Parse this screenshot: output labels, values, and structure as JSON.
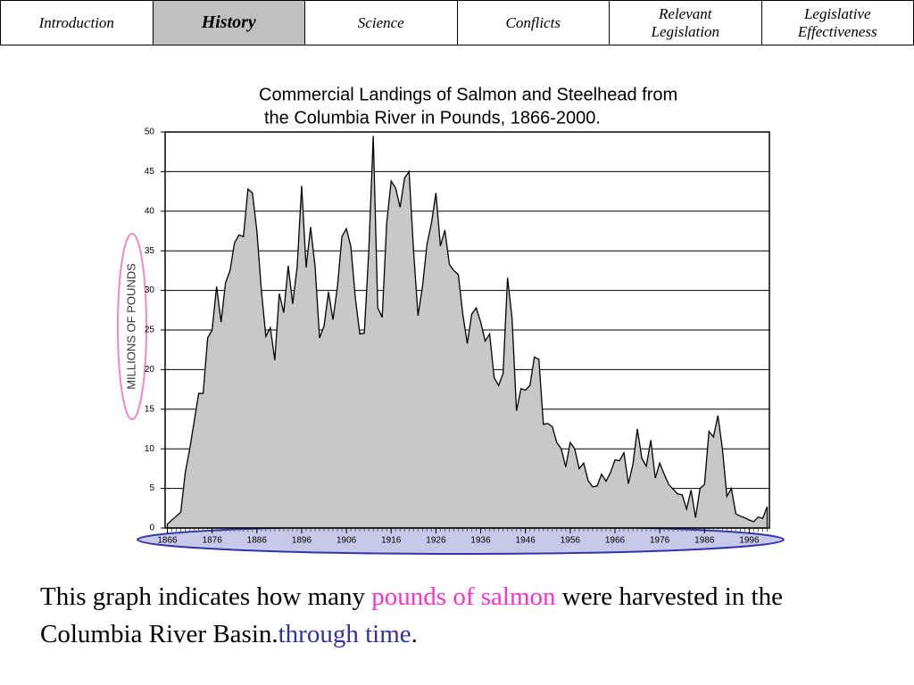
{
  "nav": {
    "tabs": [
      {
        "label": "Introduction",
        "active": false
      },
      {
        "label": "History",
        "active": true
      },
      {
        "label": "Science",
        "active": false
      },
      {
        "label": "Conflicts",
        "active": false
      },
      {
        "label": "Relevant Legislation",
        "active": false
      },
      {
        "label": "Legislative Effectiveness",
        "active": false
      }
    ]
  },
  "chart_data": {
    "type": "area",
    "title": [
      "Commercial Landings of Salmon and Steelhead from",
      "the Columbia River in Pounds, 1866-2000."
    ],
    "y_label": "MILLIONS OF POUNDS",
    "x": [
      1866,
      1867,
      1868,
      1869,
      1870,
      1871,
      1872,
      1873,
      1874,
      1875,
      1876,
      1877,
      1878,
      1879,
      1880,
      1881,
      1882,
      1883,
      1884,
      1885,
      1886,
      1887,
      1888,
      1889,
      1890,
      1891,
      1892,
      1893,
      1894,
      1895,
      1896,
      1897,
      1898,
      1899,
      1900,
      1901,
      1902,
      1903,
      1904,
      1905,
      1906,
      1907,
      1908,
      1909,
      1910,
      1911,
      1912,
      1913,
      1914,
      1915,
      1916,
      1917,
      1918,
      1919,
      1920,
      1921,
      1922,
      1923,
      1924,
      1925,
      1926,
      1927,
      1928,
      1929,
      1930,
      1931,
      1932,
      1933,
      1934,
      1935,
      1936,
      1937,
      1938,
      1939,
      1940,
      1941,
      1942,
      1943,
      1944,
      1945,
      1946,
      1947,
      1948,
      1949,
      1950,
      1951,
      1952,
      1953,
      1954,
      1955,
      1956,
      1957,
      1958,
      1959,
      1960,
      1961,
      1962,
      1963,
      1964,
      1965,
      1966,
      1967,
      1968,
      1969,
      1970,
      1971,
      1972,
      1973,
      1974,
      1975,
      1976,
      1977,
      1978,
      1979,
      1980,
      1981,
      1982,
      1983,
      1984,
      1985,
      1986,
      1987,
      1988,
      1989,
      1990,
      1991,
      1992,
      1993,
      1994,
      1995,
      1996,
      1997,
      1998,
      1999,
      2000
    ],
    "values": [
      0.5,
      1,
      1.5,
      2,
      7,
      10,
      13.5,
      17,
      17,
      24,
      25,
      30.5,
      26,
      31,
      32.5,
      36,
      37,
      36.8,
      42.8,
      42.3,
      37.5,
      30,
      24.2,
      25.3,
      21.2,
      29.6,
      27.2,
      33.1,
      28.3,
      33,
      43.2,
      32.9,
      38,
      33,
      24,
      25.5,
      29.8,
      26.3,
      30.5,
      36.8,
      37.8,
      35.5,
      29,
      24.5,
      24.6,
      35,
      49.5,
      27.8,
      26.6,
      38.5,
      43.8,
      42.9,
      40.5,
      44.2,
      45,
      35,
      26.8,
      30.5,
      35.8,
      38.5,
      42.3,
      35.6,
      37.6,
      33.3,
      32.5,
      32,
      27,
      23.3,
      27,
      27.8,
      26,
      23.6,
      24.5,
      19,
      18,
      19.5,
      31.6,
      26.5,
      14.8,
      17.6,
      17.4,
      18,
      21.6,
      21.3,
      13.1,
      13.2,
      12.8,
      10.8,
      10,
      7.7,
      10.8,
      10,
      7.5,
      8.2,
      6,
      5.2,
      5.3,
      6.8,
      5.9,
      7,
      8.6,
      8.5,
      9.5,
      5.6,
      8,
      12.5,
      8.8,
      7.8,
      11.1,
      6.3,
      8.2,
      6.8,
      5.5,
      4.9,
      4.3,
      4.2,
      2.4,
      4.8,
      1.3,
      5,
      5.5,
      12.2,
      11.5,
      14.2,
      10,
      4,
      5,
      1.8,
      1.5,
      1.3,
      1,
      0.8,
      1.4,
      1.2,
      2.7
    ],
    "color": "#c8c8c8",
    "xlim": [
      1865.5,
      2000.5
    ],
    "xticks": [
      1866,
      1876,
      1886,
      1896,
      1906,
      1916,
      1926,
      1936,
      1946,
      1956,
      1966,
      1976,
      1986,
      1996
    ],
    "ylim": [
      0,
      50
    ],
    "yticks": [
      0,
      5,
      10,
      15,
      20,
      25,
      30,
      35,
      40,
      45,
      50
    ],
    "grid": true
  },
  "caption": [
    {
      "text": "This graph indicates how many ",
      "color": "#000000"
    },
    {
      "text": "pounds of salmon",
      "color": "#ff33cc"
    },
    {
      "text": " were harvested in the Columbia River Basin.",
      "color": "#000000"
    },
    {
      "text": "through time",
      "color": "#333399"
    },
    {
      "text": ".",
      "color": "#000000"
    }
  ]
}
